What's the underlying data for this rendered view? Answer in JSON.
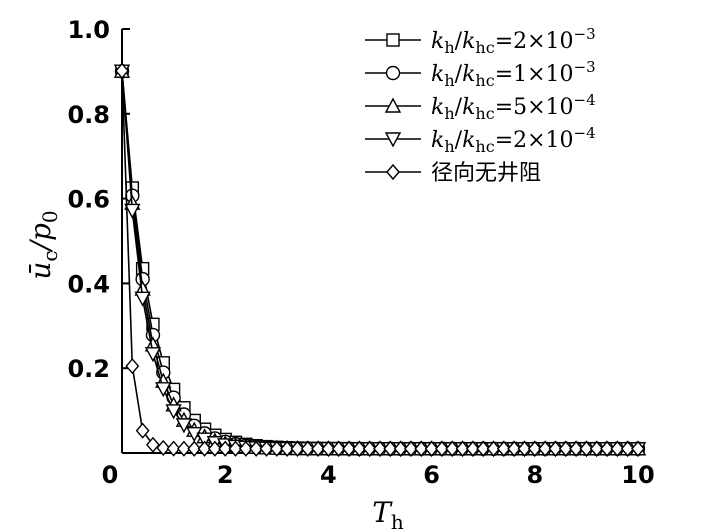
{
  "chart_data": {
    "type": "line",
    "title": "",
    "xlabel": "T",
    "xlabel_sub": "h",
    "ylabel": "ū",
    "ylabel_sub": "c",
    "ylabel_suffix": "/p",
    "ylabel_suffix_sub": "0",
    "xlim": [
      0,
      10
    ],
    "ylim": [
      0,
      1.0
    ],
    "xticks": [
      0,
      2,
      4,
      6,
      8,
      10
    ],
    "yticks": [
      0.2,
      0.4,
      0.6,
      0.8,
      1.0
    ],
    "xtick_labels": [
      "0",
      "2",
      "4",
      "6",
      "8",
      "10"
    ],
    "ytick_labels": [
      "0.2",
      "0.4",
      "0.6",
      "0.8",
      "1.0"
    ],
    "grid": false,
    "legend_position": "top-right",
    "series": [
      {
        "name": "k_h/k_hc=2×10^-3",
        "label_parts": {
          "num": "k",
          "num_sub": "h",
          "den": "k",
          "den_sub": "hc",
          "eq": "=2×10",
          "exp": "−3"
        },
        "marker": "square",
        "k": 1.85
      },
      {
        "name": "k_h/k_hc=1×10^-3",
        "label_parts": {
          "num": "k",
          "num_sub": "h",
          "den": "k",
          "den_sub": "hc",
          "eq": "=1×10",
          "exp": "−3"
        },
        "marker": "circle",
        "k": 2.0
      },
      {
        "name": "k_h/k_hc=5×10^-4",
        "label_parts": {
          "num": "k",
          "num_sub": "h",
          "den": "k",
          "den_sub": "hc",
          "eq": "=5×10",
          "exp": "−4"
        },
        "marker": "triangle-up",
        "k": 2.15
      },
      {
        "name": "k_h/k_hc=2×10^-4",
        "label_parts": {
          "num": "k",
          "num_sub": "h",
          "den": "k",
          "den_sub": "hc",
          "eq": "=2×10",
          "exp": "−4"
        },
        "marker": "triangle-down",
        "k": 2.3
      },
      {
        "name": "径向无井阻",
        "label_text": "径向无井阻",
        "marker": "diamond",
        "k": 7.6
      }
    ]
  }
}
